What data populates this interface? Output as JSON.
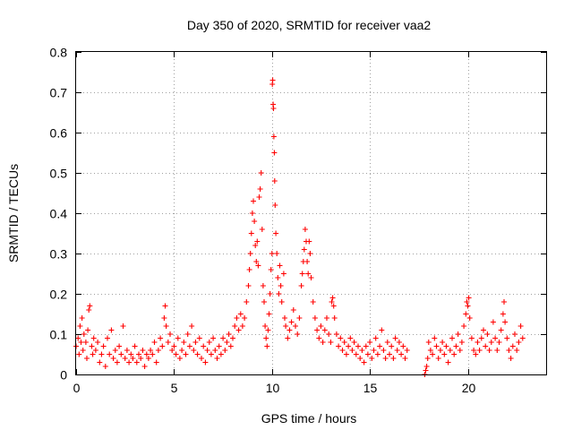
{
  "chart_data": {
    "type": "scatter",
    "title": "Day 350 of 2020, SRMTID for receiver vaa2",
    "xlabel": "GPS time / hours",
    "ylabel": "SRMTID / TECUs",
    "xlim": [
      0,
      24
    ],
    "ylim": [
      0,
      0.8
    ],
    "x_ticks": [
      0,
      5,
      10,
      15,
      20
    ],
    "y_ticks": [
      0,
      0.1,
      0.2,
      0.3,
      0.4,
      0.5,
      0.6,
      0.7,
      0.8
    ],
    "x_tick_labels": [
      "0",
      "5",
      "10",
      "15",
      "20"
    ],
    "y_tick_labels": [
      "0",
      "0.1",
      "0.2",
      "0.3",
      "0.4",
      "0.5",
      "0.6",
      "0.7",
      "0.8"
    ],
    "grid": true,
    "marker": "+",
    "color": "#ff0000",
    "series": [
      {
        "name": "SRMTID",
        "points": [
          [
            0.0,
            0.07
          ],
          [
            0.1,
            0.09
          ],
          [
            0.15,
            0.05
          ],
          [
            0.2,
            0.12
          ],
          [
            0.25,
            0.08
          ],
          [
            0.3,
            0.14
          ],
          [
            0.35,
            0.06
          ],
          [
            0.4,
            0.1
          ],
          [
            0.5,
            0.08
          ],
          [
            0.55,
            0.04
          ],
          [
            0.6,
            0.11
          ],
          [
            0.65,
            0.16
          ],
          [
            0.7,
            0.17
          ],
          [
            0.8,
            0.07
          ],
          [
            0.85,
            0.05
          ],
          [
            0.9,
            0.09
          ],
          [
            1.0,
            0.06
          ],
          [
            1.1,
            0.08
          ],
          [
            1.2,
            0.03
          ],
          [
            1.3,
            0.05
          ],
          [
            1.4,
            0.07
          ],
          [
            1.5,
            0.02
          ],
          [
            1.6,
            0.09
          ],
          [
            1.7,
            0.05
          ],
          [
            1.8,
            0.11
          ],
          [
            1.9,
            0.04
          ],
          [
            2.0,
            0.06
          ],
          [
            2.1,
            0.03
          ],
          [
            2.2,
            0.07
          ],
          [
            2.3,
            0.05
          ],
          [
            2.4,
            0.12
          ],
          [
            2.5,
            0.04
          ],
          [
            2.6,
            0.06
          ],
          [
            2.7,
            0.03
          ],
          [
            2.8,
            0.05
          ],
          [
            2.9,
            0.04
          ],
          [
            3.0,
            0.07
          ],
          [
            3.1,
            0.03
          ],
          [
            3.2,
            0.05
          ],
          [
            3.3,
            0.04
          ],
          [
            3.4,
            0.06
          ],
          [
            3.5,
            0.02
          ],
          [
            3.6,
            0.05
          ],
          [
            3.7,
            0.04
          ],
          [
            3.8,
            0.06
          ],
          [
            3.9,
            0.05
          ],
          [
            4.0,
            0.08
          ],
          [
            4.1,
            0.03
          ],
          [
            4.2,
            0.06
          ],
          [
            4.3,
            0.09
          ],
          [
            4.4,
            0.07
          ],
          [
            4.5,
            0.14
          ],
          [
            4.55,
            0.17
          ],
          [
            4.6,
            0.12
          ],
          [
            4.7,
            0.08
          ],
          [
            4.8,
            0.1
          ],
          [
            4.9,
            0.06
          ],
          [
            5.0,
            0.07
          ],
          [
            5.1,
            0.05
          ],
          [
            5.2,
            0.09
          ],
          [
            5.3,
            0.04
          ],
          [
            5.4,
            0.06
          ],
          [
            5.5,
            0.08
          ],
          [
            5.6,
            0.05
          ],
          [
            5.7,
            0.1
          ],
          [
            5.8,
            0.07
          ],
          [
            5.9,
            0.12
          ],
          [
            6.0,
            0.06
          ],
          [
            6.1,
            0.08
          ],
          [
            6.2,
            0.05
          ],
          [
            6.3,
            0.09
          ],
          [
            6.4,
            0.04
          ],
          [
            6.5,
            0.07
          ],
          [
            6.6,
            0.03
          ],
          [
            6.7,
            0.06
          ],
          [
            6.8,
            0.08
          ],
          [
            6.9,
            0.05
          ],
          [
            7.0,
            0.09
          ],
          [
            7.1,
            0.06
          ],
          [
            7.2,
            0.04
          ],
          [
            7.3,
            0.07
          ],
          [
            7.4,
            0.05
          ],
          [
            7.5,
            0.09
          ],
          [
            7.6,
            0.06
          ],
          [
            7.7,
            0.08
          ],
          [
            7.8,
            0.1
          ],
          [
            7.9,
            0.07
          ],
          [
            8.0,
            0.09
          ],
          [
            8.1,
            0.12
          ],
          [
            8.2,
            0.14
          ],
          [
            8.3,
            0.11
          ],
          [
            8.4,
            0.15
          ],
          [
            8.5,
            0.12
          ],
          [
            8.6,
            0.14
          ],
          [
            8.7,
            0.18
          ],
          [
            8.8,
            0.22
          ],
          [
            8.85,
            0.26
          ],
          [
            8.9,
            0.3
          ],
          [
            8.95,
            0.35
          ],
          [
            9.0,
            0.4
          ],
          [
            9.05,
            0.43
          ],
          [
            9.1,
            0.38
          ],
          [
            9.15,
            0.32
          ],
          [
            9.2,
            0.28
          ],
          [
            9.25,
            0.33
          ],
          [
            9.3,
            0.27
          ],
          [
            9.35,
            0.44
          ],
          [
            9.4,
            0.46
          ],
          [
            9.45,
            0.5
          ],
          [
            9.5,
            0.36
          ],
          [
            9.55,
            0.22
          ],
          [
            9.6,
            0.18
          ],
          [
            9.65,
            0.12
          ],
          [
            9.7,
            0.09
          ],
          [
            9.75,
            0.07
          ],
          [
            9.8,
            0.11
          ],
          [
            9.85,
            0.15
          ],
          [
            9.9,
            0.2
          ],
          [
            9.95,
            0.26
          ],
          [
            10.0,
            0.3
          ],
          [
            10.02,
            0.72
          ],
          [
            10.04,
            0.73
          ],
          [
            10.06,
            0.67
          ],
          [
            10.08,
            0.66
          ],
          [
            10.1,
            0.59
          ],
          [
            10.12,
            0.55
          ],
          [
            10.14,
            0.48
          ],
          [
            10.16,
            0.42
          ],
          [
            10.2,
            0.35
          ],
          [
            10.25,
            0.3
          ],
          [
            10.3,
            0.24
          ],
          [
            10.35,
            0.2
          ],
          [
            10.4,
            0.27
          ],
          [
            10.45,
            0.22
          ],
          [
            10.5,
            0.18
          ],
          [
            10.6,
            0.25
          ],
          [
            10.65,
            0.14
          ],
          [
            10.7,
            0.12
          ],
          [
            10.8,
            0.09
          ],
          [
            10.9,
            0.11
          ],
          [
            11.0,
            0.13
          ],
          [
            11.1,
            0.16
          ],
          [
            11.2,
            0.12
          ],
          [
            11.3,
            0.1
          ],
          [
            11.4,
            0.14
          ],
          [
            11.5,
            0.22
          ],
          [
            11.55,
            0.25
          ],
          [
            11.6,
            0.28
          ],
          [
            11.65,
            0.31
          ],
          [
            11.7,
            0.36
          ],
          [
            11.75,
            0.33
          ],
          [
            11.8,
            0.28
          ],
          [
            11.85,
            0.25
          ],
          [
            11.9,
            0.33
          ],
          [
            11.95,
            0.3
          ],
          [
            12.0,
            0.24
          ],
          [
            12.1,
            0.18
          ],
          [
            12.2,
            0.14
          ],
          [
            12.3,
            0.11
          ],
          [
            12.4,
            0.09
          ],
          [
            12.5,
            0.12
          ],
          [
            12.6,
            0.08
          ],
          [
            12.7,
            0.11
          ],
          [
            12.8,
            0.14
          ],
          [
            12.9,
            0.1
          ],
          [
            13.0,
            0.08
          ],
          [
            13.05,
            0.18
          ],
          [
            13.1,
            0.19
          ],
          [
            13.15,
            0.17
          ],
          [
            13.2,
            0.14
          ],
          [
            13.3,
            0.1
          ],
          [
            13.4,
            0.07
          ],
          [
            13.5,
            0.09
          ],
          [
            13.6,
            0.06
          ],
          [
            13.7,
            0.08
          ],
          [
            13.8,
            0.05
          ],
          [
            13.9,
            0.07
          ],
          [
            14.0,
            0.09
          ],
          [
            14.1,
            0.06
          ],
          [
            14.2,
            0.08
          ],
          [
            14.3,
            0.05
          ],
          [
            14.4,
            0.07
          ],
          [
            14.5,
            0.04
          ],
          [
            14.6,
            0.06
          ],
          [
            14.7,
            0.03
          ],
          [
            14.8,
            0.07
          ],
          [
            14.9,
            0.05
          ],
          [
            15.0,
            0.08
          ],
          [
            15.1,
            0.04
          ],
          [
            15.2,
            0.06
          ],
          [
            15.3,
            0.09
          ],
          [
            15.4,
            0.05
          ],
          [
            15.5,
            0.07
          ],
          [
            15.6,
            0.11
          ],
          [
            15.7,
            0.06
          ],
          [
            15.8,
            0.04
          ],
          [
            15.9,
            0.08
          ],
          [
            16.0,
            0.05
          ],
          [
            16.1,
            0.07
          ],
          [
            16.2,
            0.04
          ],
          [
            16.3,
            0.09
          ],
          [
            16.4,
            0.06
          ],
          [
            16.5,
            0.08
          ],
          [
            16.6,
            0.05
          ],
          [
            16.7,
            0.07
          ],
          [
            16.8,
            0.04
          ],
          [
            16.9,
            0.06
          ],
          [
            17.8,
            0.0
          ],
          [
            17.85,
            0.01
          ],
          [
            17.9,
            0.02
          ],
          [
            17.95,
            0.04
          ],
          [
            18.0,
            0.08
          ],
          [
            18.1,
            0.06
          ],
          [
            18.2,
            0.05
          ],
          [
            18.3,
            0.09
          ],
          [
            18.4,
            0.07
          ],
          [
            18.5,
            0.04
          ],
          [
            18.6,
            0.06
          ],
          [
            18.7,
            0.08
          ],
          [
            18.8,
            0.05
          ],
          [
            18.9,
            0.07
          ],
          [
            19.0,
            0.03
          ],
          [
            19.1,
            0.06
          ],
          [
            19.2,
            0.09
          ],
          [
            19.3,
            0.05
          ],
          [
            19.4,
            0.07
          ],
          [
            19.5,
            0.1
          ],
          [
            19.6,
            0.06
          ],
          [
            19.7,
            0.08
          ],
          [
            19.8,
            0.12
          ],
          [
            19.9,
            0.15
          ],
          [
            19.95,
            0.18
          ],
          [
            20.0,
            0.17
          ],
          [
            20.05,
            0.19
          ],
          [
            20.1,
            0.14
          ],
          [
            20.2,
            0.09
          ],
          [
            20.3,
            0.06
          ],
          [
            20.4,
            0.05
          ],
          [
            20.5,
            0.08
          ],
          [
            20.6,
            0.06
          ],
          [
            20.7,
            0.09
          ],
          [
            20.8,
            0.11
          ],
          [
            20.9,
            0.07
          ],
          [
            21.0,
            0.1
          ],
          [
            21.1,
            0.06
          ],
          [
            21.2,
            0.08
          ],
          [
            21.3,
            0.13
          ],
          [
            21.4,
            0.09
          ],
          [
            21.5,
            0.06
          ],
          [
            21.6,
            0.08
          ],
          [
            21.7,
            0.11
          ],
          [
            21.8,
            0.15
          ],
          [
            21.85,
            0.18
          ],
          [
            21.9,
            0.13
          ],
          [
            22.0,
            0.09
          ],
          [
            22.1,
            0.06
          ],
          [
            22.2,
            0.04
          ],
          [
            22.3,
            0.07
          ],
          [
            22.4,
            0.1
          ],
          [
            22.5,
            0.06
          ],
          [
            22.6,
            0.08
          ],
          [
            22.7,
            0.12
          ],
          [
            22.8,
            0.09
          ]
        ]
      }
    ]
  }
}
